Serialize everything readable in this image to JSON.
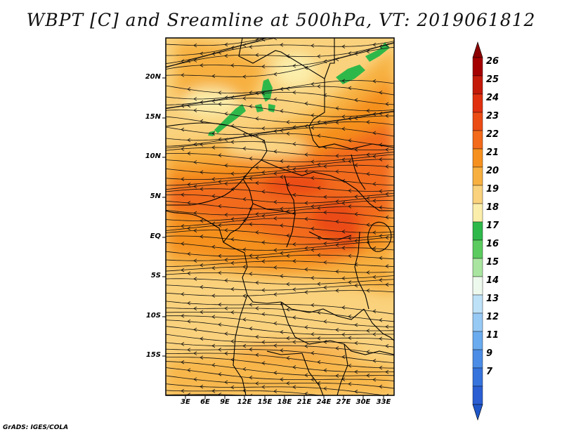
{
  "title": "WBPT [C] and Sreamline at 500hPa, VT: 2019061812",
  "map": {
    "variable": "Wet-bulb potential temperature",
    "units": "C",
    "level": "500hPa",
    "valid_time": "2019061812",
    "lat_labels": [
      "20N",
      "15N",
      "10N",
      "5N",
      "EQ",
      "5S",
      "10S",
      "15S"
    ],
    "lon_labels": [
      "3E",
      "6E",
      "9E",
      "12E",
      "15E",
      "18E",
      "21E",
      "24E",
      "27E",
      "30E",
      "33E"
    ]
  },
  "colorbar": {
    "labels": [
      "26",
      "25",
      "24",
      "23",
      "22",
      "21",
      "20",
      "19",
      "18",
      "17",
      "16",
      "15",
      "14",
      "13",
      "12",
      "11",
      "9",
      "7"
    ],
    "colors": [
      "#a50000",
      "#c41a0a",
      "#e0300f",
      "#eb4c14",
      "#f26a1a",
      "#f5901e",
      "#f7b040",
      "#fad27d",
      "#fbeeab",
      "#2fb84a",
      "#5ccb5f",
      "#a9e5a0",
      "#eef9ee",
      "#bde1f7",
      "#97c9f5",
      "#6aabef",
      "#4b8de6",
      "#3673dc",
      "#2a5ed2"
    ],
    "top_color": "#8c0000",
    "bottom_color": "#1f56c8"
  },
  "credit": "GrADS: IGES/COLA"
}
